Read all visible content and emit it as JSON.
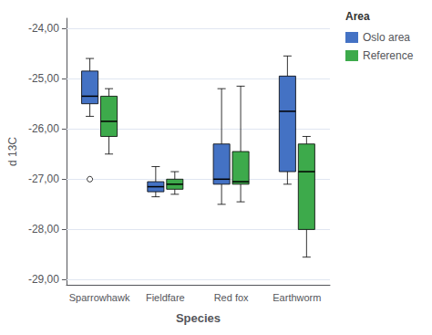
{
  "chart_data": {
    "type": "boxplot",
    "categories": [
      "Sparrowhawk",
      "Fieldfare",
      "Red fox",
      "Earthworm"
    ],
    "series": [
      {
        "name": "Oslo area",
        "color": "#4472C4",
        "values": [
          {
            "whislo": -25.75,
            "q1": -25.5,
            "med": -25.35,
            "q3": -24.85,
            "whishi": -24.6
          },
          {
            "whislo": -27.35,
            "q1": -27.25,
            "med": -27.15,
            "q3": -27.05,
            "whishi": -26.75
          },
          {
            "whislo": -27.5,
            "q1": -27.1,
            "med": -27.0,
            "q3": -26.3,
            "whishi": -25.2
          },
          {
            "whislo": -27.1,
            "q1": -26.85,
            "med": -25.65,
            "q3": -24.95,
            "whishi": -24.55
          }
        ],
        "fliers": [
          [
            -27.0
          ],
          [],
          [],
          []
        ]
      },
      {
        "name": "Reference",
        "color": "#3DAA4B",
        "values": [
          {
            "whislo": -26.5,
            "q1": -26.15,
            "med": -25.85,
            "q3": -25.35,
            "whishi": -25.2
          },
          {
            "whislo": -27.3,
            "q1": -27.2,
            "med": -27.1,
            "q3": -27.0,
            "whishi": -26.85
          },
          {
            "whislo": -27.45,
            "q1": -27.1,
            "med": -27.05,
            "q3": -26.45,
            "whishi": -25.15
          },
          {
            "whislo": -28.55,
            "q1": -28.0,
            "med": -26.85,
            "q3": -26.3,
            "whishi": -26.15
          }
        ],
        "fliers": [
          [],
          [],
          [],
          []
        ]
      }
    ],
    "xlabel": "Species",
    "ylabel": "d 13C",
    "ylim": [
      -29.1,
      -23.8
    ],
    "yticks": [
      {
        "value": -29.0,
        "label": "-29,00"
      },
      {
        "value": -28.0,
        "label": "-28,00"
      },
      {
        "value": -27.0,
        "label": "-27,00"
      },
      {
        "value": -26.0,
        "label": "-26,00"
      },
      {
        "value": -25.0,
        "label": "-25,00"
      },
      {
        "value": -24.0,
        "label": "-24,00"
      }
    ],
    "grid": true,
    "legend": "upper right",
    "legend_title": "Area"
  }
}
